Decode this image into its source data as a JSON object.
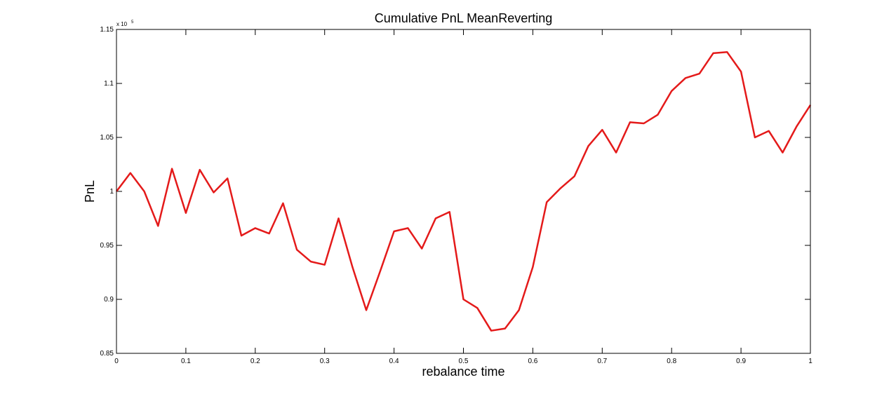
{
  "chart_data": {
    "type": "line",
    "title": "Cumulative PnL MeanReverting",
    "xlabel": "rebalance time",
    "ylabel": "PnL",
    "y_exponent_label": "x 10",
    "y_exponent_power": "5",
    "xlim": [
      0,
      1
    ],
    "ylim": [
      0.85,
      1.15
    ],
    "x_ticks": [
      0,
      0.1,
      0.2,
      0.3,
      0.4,
      0.5,
      0.6,
      0.7,
      0.8,
      0.9,
      1
    ],
    "x_tick_labels": [
      "0",
      "0.1",
      "0.2",
      "0.3",
      "0.4",
      "0.5",
      "0.6",
      "0.7",
      "0.8",
      "0.9",
      "1"
    ],
    "y_ticks": [
      0.85,
      0.9,
      0.95,
      1,
      1.05,
      1.1,
      1.15
    ],
    "y_tick_labels": [
      "0.85",
      "0.9",
      "0.95",
      "1",
      "1.05",
      "1.1",
      "1.15"
    ],
    "grid": false,
    "legend": "none",
    "line_color": "#e41a1a",
    "series": [
      {
        "x": [
          0,
          0.02,
          0.04,
          0.06,
          0.08,
          0.1,
          0.12,
          0.14,
          0.16,
          0.18,
          0.2,
          0.22,
          0.24,
          0.26,
          0.28,
          0.3,
          0.32,
          0.34,
          0.36,
          0.38,
          0.4,
          0.42,
          0.44,
          0.46,
          0.48,
          0.5,
          0.52,
          0.54,
          0.56,
          0.58,
          0.6,
          0.62,
          0.64,
          0.66,
          0.68,
          0.7,
          0.72,
          0.74,
          0.76,
          0.78,
          0.8,
          0.82,
          0.84,
          0.86,
          0.88,
          0.9,
          0.92,
          0.94,
          0.96,
          0.98,
          1.0
        ],
        "values": [
          1.0,
          1.017,
          1.0,
          0.968,
          1.021,
          0.98,
          1.02,
          0.999,
          1.012,
          0.959,
          0.966,
          0.961,
          0.989,
          0.946,
          0.935,
          0.932,
          0.975,
          0.93,
          0.89,
          0.926,
          0.963,
          0.966,
          0.947,
          0.975,
          0.981,
          0.9,
          0.892,
          0.871,
          0.873,
          0.89,
          0.93,
          0.99,
          1.003,
          1.014,
          1.042,
          1.057,
          1.036,
          1.064,
          1.063,
          1.071,
          1.093,
          1.105,
          1.109,
          1.128,
          1.129,
          1.111,
          1.05,
          1.056,
          1.036,
          1.06,
          1.08
        ]
      }
    ]
  }
}
